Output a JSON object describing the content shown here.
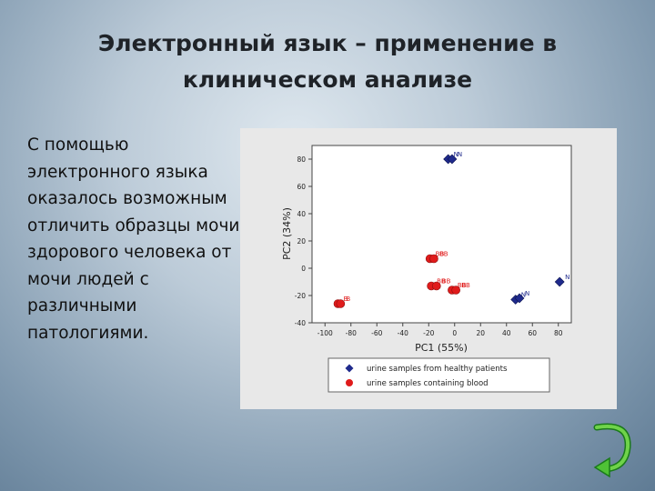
{
  "slide": {
    "title_line1": "Электронный язык – применение в",
    "title_line2": "клиническом анализе",
    "body_text": "С помощью электронного языка оказалось возможным отличить образцы мочи здорового человека от мочи людей с различными патологиями."
  },
  "colors": {
    "healthy": "#1f2a8c",
    "blood": "#e01b1b"
  },
  "chart_data": {
    "type": "scatter",
    "title": "",
    "xlabel": "PC1 (55%)",
    "ylabel": "PC2 (34%)",
    "xlim": [
      -110,
      90
    ],
    "ylim": [
      -40,
      90
    ],
    "xticks": [
      -100,
      -80,
      -60,
      -40,
      -20,
      0,
      20,
      40,
      60,
      80
    ],
    "yticks": [
      -40,
      -20,
      0,
      20,
      40,
      60,
      80
    ],
    "grid": false,
    "legend_position": "below-plot",
    "series": [
      {
        "name": "urine samples from healthy patients",
        "marker": "diamond",
        "color": "#1f2a8c",
        "points": [
          {
            "x": -5,
            "y": 80,
            "label": "N"
          },
          {
            "x": -2,
            "y": 80,
            "label": "N"
          },
          {
            "x": 47,
            "y": -23,
            "label": "N"
          },
          {
            "x": 50,
            "y": -22,
            "label": "N"
          },
          {
            "x": 81,
            "y": -10,
            "label": "N"
          }
        ]
      },
      {
        "name": "urine samples containing blood",
        "marker": "circle",
        "color": "#e01b1b",
        "points": [
          {
            "x": -90,
            "y": -26,
            "label": "B"
          },
          {
            "x": -88,
            "y": -26,
            "label": "B"
          },
          {
            "x": -19,
            "y": 7,
            "label": "BB"
          },
          {
            "x": -16,
            "y": 7,
            "label": "BB"
          },
          {
            "x": -18,
            "y": -13,
            "label": "BB"
          },
          {
            "x": -14,
            "y": -13,
            "label": "BB"
          },
          {
            "x": -2,
            "y": -16,
            "label": "BB"
          },
          {
            "x": 1,
            "y": -16,
            "label": "BB"
          }
        ]
      }
    ]
  }
}
